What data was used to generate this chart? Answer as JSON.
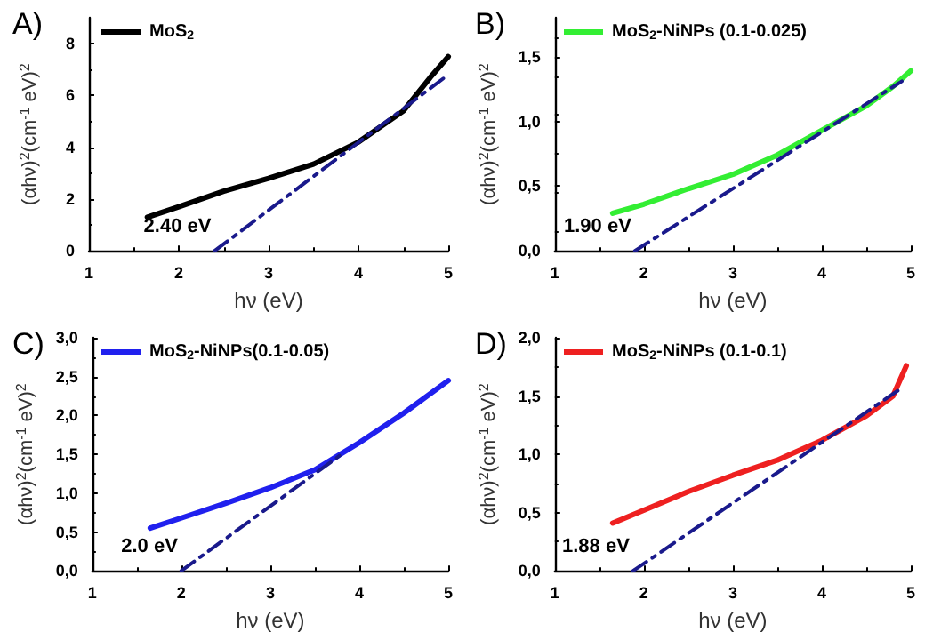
{
  "chart_data": [
    {
      "type": "line",
      "title": "A)",
      "xlabel": "hν (eV)",
      "ylabel": "(αhν)$^{2}$(cm$^{-1}$ eV)$^{2}$",
      "xlim": [
        1,
        5
      ],
      "xticks": [
        1,
        2,
        3,
        4,
        5
      ],
      "ylim": [
        0,
        9
      ],
      "yticks": [
        0,
        2,
        4,
        6,
        8
      ],
      "grid": false,
      "legend": "top left",
      "marker": "none",
      "line_style": "solid",
      "annotations": [
        {
          "text": "2.40 eV",
          "x": 2.4,
          "y": 0
        }
      ],
      "x": [
        1.65,
        2.0,
        2.5,
        3.0,
        3.5,
        4.0,
        4.5,
        4.8,
        5.0
      ],
      "series": [
        {
          "name": "MoS$_{2}$",
          "color": "#000000",
          "values": [
            1.3,
            1.7,
            2.3,
            2.8,
            3.35,
            4.2,
            5.4,
            6.7,
            7.5
          ]
        },
        {
          "color": "#1a1a8c",
          "line_style": "dashed",
          "x": [
            2.4,
            5.0
          ],
          "values": [
            0,
            6.8
          ]
        }
      ]
    },
    {
      "type": "line",
      "title": "B)",
      "xlabel": "hν (eV)",
      "ylabel": "(αhν)$^{2}$(cm$^{-1}$ eV)$^{2}$",
      "xlim": [
        1,
        5
      ],
      "xticks": [
        1,
        2,
        3,
        4,
        5
      ],
      "ylim": [
        0,
        1.8
      ],
      "yticks": [
        {
          "value": 0,
          "label": "0,0"
        },
        {
          "value": 0.5,
          "label": "0,5"
        },
        {
          "value": 1.0,
          "label": "1,0"
        },
        {
          "value": 1.5,
          "label": "1,5"
        }
      ],
      "grid": false,
      "legend": "top left",
      "marker": "none",
      "line_style": "solid",
      "annotations": [
        {
          "text": "1.90 eV",
          "x": 1.9,
          "y": 0
        }
      ],
      "x": [
        1.65,
        2.0,
        2.5,
        3.0,
        3.5,
        4.0,
        4.5,
        4.8,
        5.0
      ],
      "series": [
        {
          "name": "MoS$_{2}$-NiNPs (0.1-0.025)",
          "color": "#33ee33",
          "values": [
            0.29,
            0.36,
            0.48,
            0.59,
            0.74,
            0.93,
            1.12,
            1.27,
            1.39
          ]
        },
        {
          "color": "#1a1a8c",
          "line_style": "dashed",
          "x": [
            1.9,
            4.9
          ],
          "values": [
            0,
            1.31
          ]
        }
      ]
    },
    {
      "type": "line",
      "title": "C)",
      "xlabel": "hν (eV)",
      "ylabel": "(αhν)$^{2}$(cm$^{-1}$ eV)$^{2}$",
      "xlim": [
        1,
        5
      ],
      "xticks": [
        1,
        2,
        3,
        4,
        5
      ],
      "ylim": [
        0,
        3
      ],
      "yticks": [
        {
          "value": 0,
          "label": "0,0"
        },
        {
          "value": 0.5,
          "label": "0,5"
        },
        {
          "value": 1.0,
          "label": "1,0"
        },
        {
          "value": 1.5,
          "label": "1,5"
        },
        {
          "value": 2.0,
          "label": "2,0"
        },
        {
          "value": 2.5,
          "label": "2,5"
        },
        {
          "value": 3.0,
          "label": "3,0"
        }
      ],
      "grid": false,
      "legend": "top left",
      "marker": "none",
      "line_style": "solid",
      "annotations": [
        {
          "text": "2.0 eV",
          "x": 2.0,
          "y": 0
        }
      ],
      "x": [
        1.65,
        2.0,
        2.5,
        3.0,
        3.5,
        4.0,
        4.5,
        5.0
      ],
      "series": [
        {
          "name": "MoS$_{2}$-NiNPs(0.1-0.05)",
          "color": "#2020ee",
          "values": [
            0.55,
            0.68,
            0.87,
            1.07,
            1.3,
            1.65,
            2.03,
            2.45
          ]
        },
        {
          "color": "#1a1a8c",
          "line_style": "dashed",
          "x": [
            2.0,
            3.8
          ],
          "values": [
            0,
            1.5
          ]
        }
      ]
    },
    {
      "type": "line",
      "title": "D)",
      "xlabel": "hν (eV)",
      "ylabel": "(αhν)$^{2}$(cm$^{-1}$ eV)$^{2}$",
      "xlim": [
        1,
        5
      ],
      "xticks": [
        1,
        2,
        3,
        4,
        5
      ],
      "ylim": [
        0,
        2
      ],
      "yticks": [
        {
          "value": 0,
          "label": "0,0"
        },
        {
          "value": 0.5,
          "label": "0,5"
        },
        {
          "value": 1.0,
          "label": "1,0"
        },
        {
          "value": 1.5,
          "label": "1,5"
        },
        {
          "value": 2.0,
          "label": "2,0"
        }
      ],
      "grid": false,
      "legend": "top left",
      "marker": "none",
      "line_style": "solid",
      "annotations": [
        {
          "text": "1.88 eV",
          "x": 1.88,
          "y": 0
        }
      ],
      "x": [
        1.65,
        2.0,
        2.5,
        3.0,
        3.5,
        4.0,
        4.5,
        4.8,
        4.95
      ],
      "series": [
        {
          "name": "MoS$_{2}$-NiNPs (0.1-0.1)",
          "color": "#ee2020",
          "values": [
            0.41,
            0.52,
            0.68,
            0.82,
            0.95,
            1.12,
            1.33,
            1.5,
            1.76
          ]
        },
        {
          "color": "#1a1a8c",
          "line_style": "dashed",
          "x": [
            1.88,
            4.9
          ],
          "values": [
            0,
            1.57
          ]
        }
      ]
    }
  ]
}
